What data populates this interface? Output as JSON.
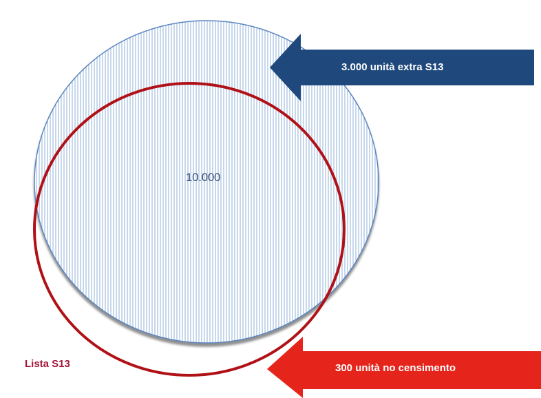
{
  "diagram": {
    "center_value": "10.000",
    "arrow_top_label": "3.000 unità extra S13",
    "arrow_bottom_label": "300 unità no censimento",
    "list_label": "Lista S13"
  },
  "colors": {
    "census_circle_stroke": "#5b86bf",
    "census_circle_hatch": "#8fb0da",
    "list_circle_stroke": "#b01117",
    "arrow_top_fill": "#1f487c",
    "arrow_bottom_fill": "#e5241b",
    "list_label_color": "#a5163a",
    "center_value_color": "#33507a"
  }
}
